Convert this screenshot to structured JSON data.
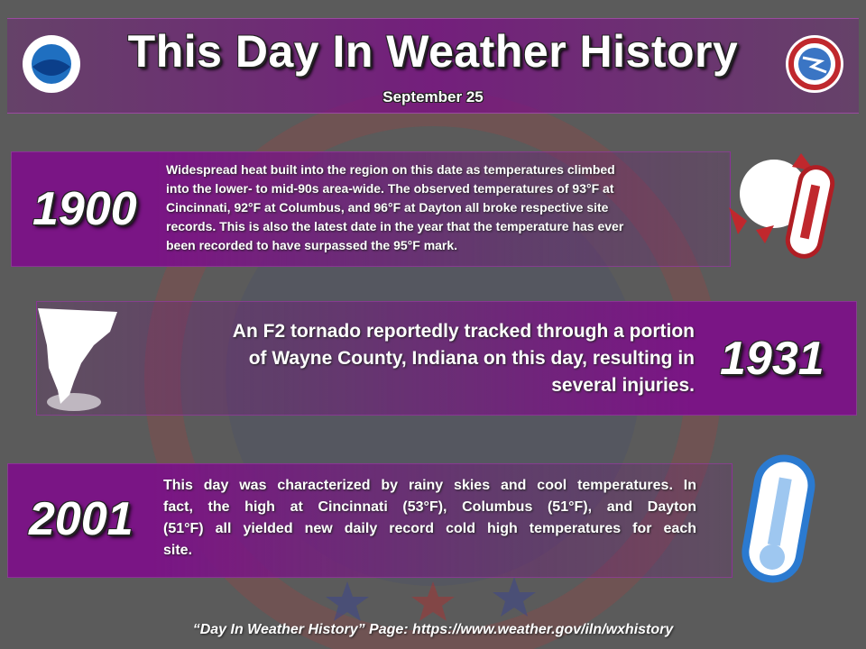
{
  "header": {
    "title": "This Day In Weather History",
    "date": "September 25"
  },
  "events": [
    {
      "year": "1900",
      "lines": [
        "Widespread heat built into the region on this date as temperatures climbed",
        "into the lower- to mid-90s area-wide. The observed temperatures of 93°F at",
        "Cincinnati, 92°F at Columbus, and 96°F at Dayton all broke respective site",
        "records. This is also the latest date in the year that the temperature has ever",
        "been recorded to have surpassed the 95°F mark."
      ]
    },
    {
      "year": "1931",
      "lines": [
        "An F2 tornado reportedly tracked through a portion",
        "of Wayne County, Indiana on this day, resulting in",
        "several injuries."
      ]
    },
    {
      "year": "2001",
      "lines": [
        "This day was characterized by rainy skies and cool temperatures. In",
        "fact, the high at Cincinnati (53°F), Columbus (51°F), and Dayton",
        "(51°F) all yielded new daily record cold high temperatures for each",
        "site."
      ]
    }
  ],
  "footer": "“Day In Weather History” Page: https://www.weather.gov/iln/wxhistory"
}
